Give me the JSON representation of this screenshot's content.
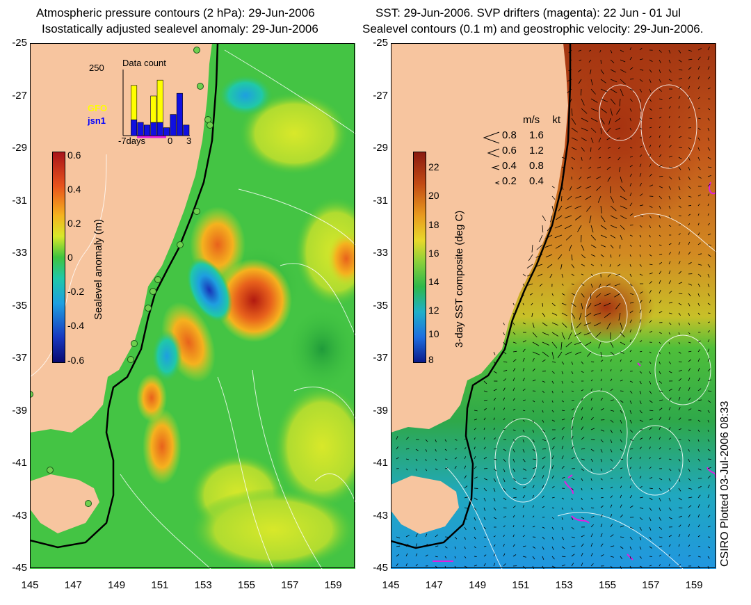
{
  "left_panel": {
    "title_line1": "Atmospheric pressure contours (2 hPa): 29-Jun-2006",
    "title_line2": "Isostatically adjusted sealevel anomaly: 29-Jun-2006",
    "colorbar_label": "Sealevel anomaly (m)",
    "colorbar_ticks": [
      "0.6",
      "0.4",
      "0.2",
      "0",
      "-0.2",
      "-0.4",
      "-0.6"
    ],
    "inset": {
      "top_value": "250",
      "title": "Data count",
      "series_gfo": "GFO",
      "series_jsn1": "jsn1",
      "x_ticks": [
        "-7days",
        "0",
        "3"
      ],
      "gfo_counts": [
        0,
        190,
        0,
        0,
        150,
        210,
        0,
        0,
        0,
        0
      ],
      "jsn1_counts": [
        0,
        60,
        50,
        40,
        50,
        50,
        30,
        80,
        160,
        40
      ]
    }
  },
  "right_panel": {
    "title_line1": "SST: 29-Jun-2006. SVP drifters (magenta): 22 Jun - 01 Jul",
    "title_line2": "Sealevel contours (0.1 m) and geostrophic velocity: 29-Jun-2006.",
    "colorbar_label": "3-day SST composite (deg C)",
    "colorbar_ticks": [
      "22",
      "20",
      "18",
      "16",
      "14",
      "12",
      "10",
      "8"
    ],
    "vector_legend": {
      "header_ms": "m/s",
      "header_kt": "kt",
      "rows": [
        {
          "ms": "0.8",
          "kt": "1.6"
        },
        {
          "ms": "0.6",
          "kt": "1.2"
        },
        {
          "ms": "0.4",
          "kt": "0.8"
        },
        {
          "ms": "0.2",
          "kt": "0.4"
        }
      ]
    }
  },
  "y_axis_ticks": [
    "-25",
    "-27",
    "-29",
    "-31",
    "-33",
    "-35",
    "-37",
    "-39",
    "-41",
    "-43",
    "-45"
  ],
  "x_axis_ticks": [
    "145",
    "147",
    "149",
    "151",
    "153",
    "155",
    "157",
    "159"
  ],
  "credit": "CSIRO Plotted 03-Jul-2006 08:33",
  "colors": {
    "land": "#f7c59f",
    "sla_background": "#3fc43f",
    "sst_warm": "#b34a12",
    "sst_cold": "#1fa7e0",
    "drifter": "#e020e0",
    "tide_gauge": "#6fd04f"
  }
}
